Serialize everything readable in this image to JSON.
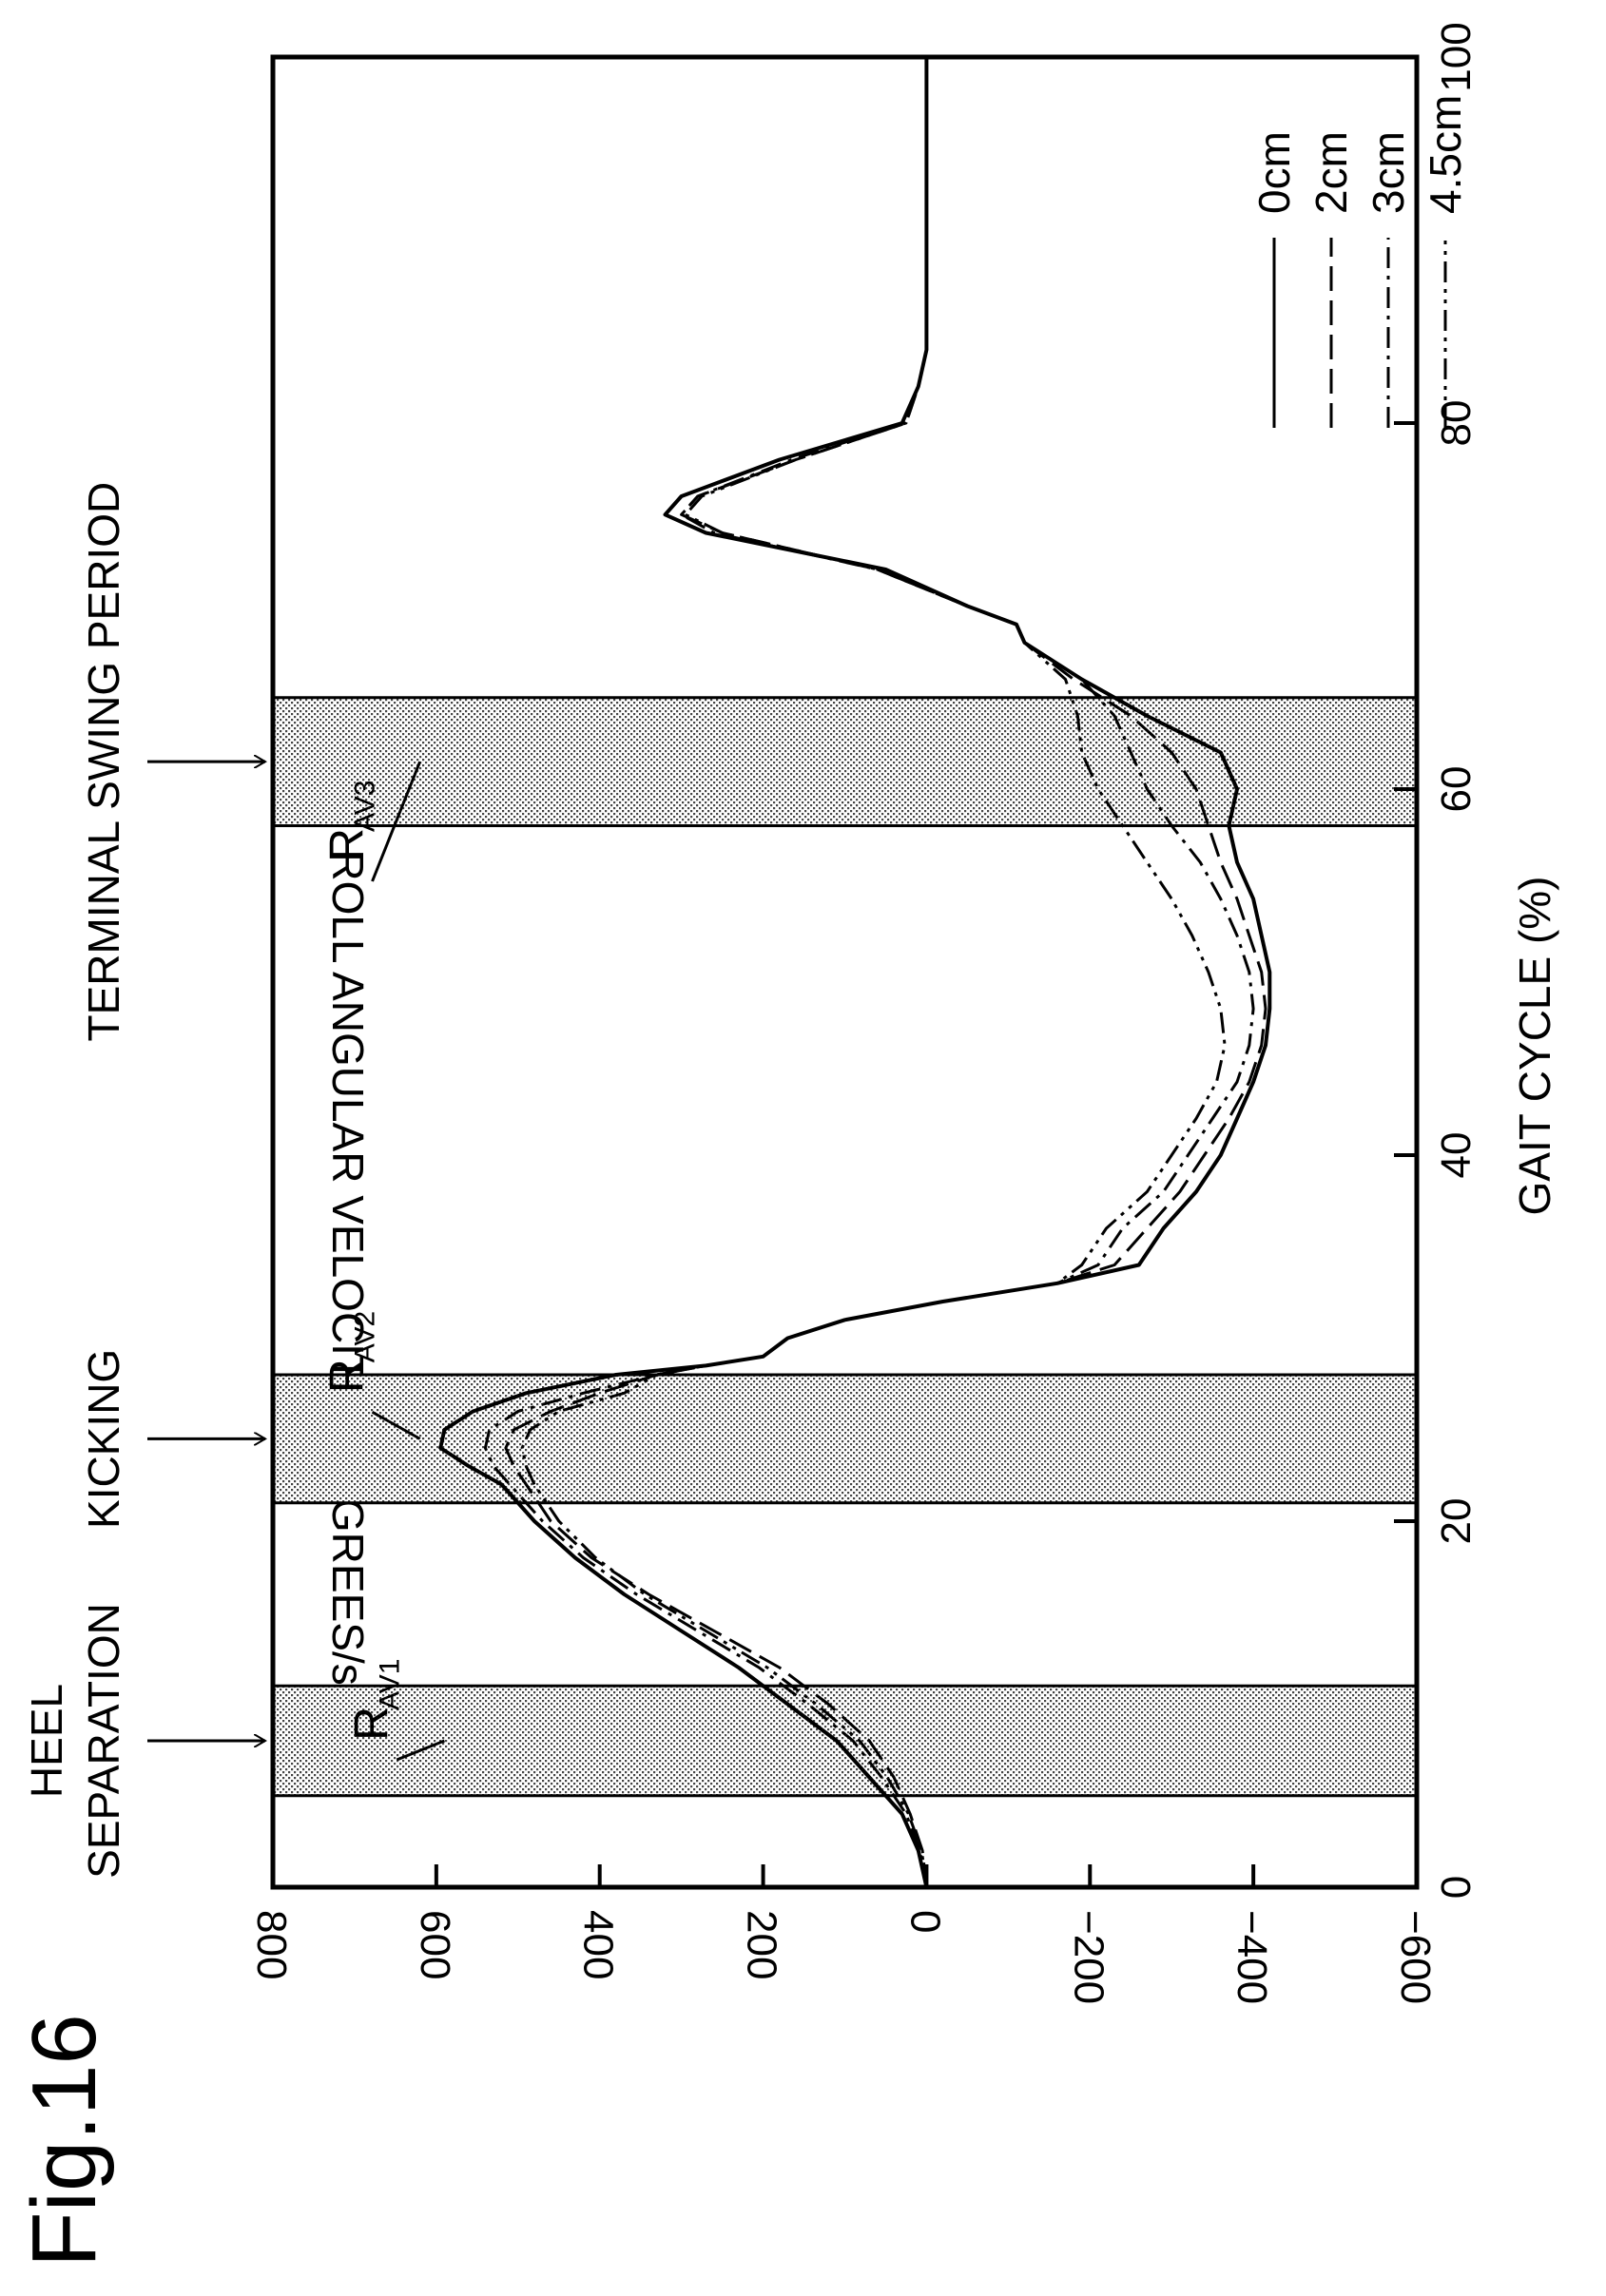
{
  "figure_label": "Fig.16",
  "chart_data": {
    "type": "line",
    "title": "",
    "xlabel": "GAIT CYCLE (%)",
    "ylabel": "ROLL ANGULAR VELOCITY (DEGREES/sec)",
    "xlim": [
      0,
      100
    ],
    "ylim": [
      -600,
      800
    ],
    "x_ticks": [
      0,
      20,
      40,
      60,
      80,
      100
    ],
    "y_ticks": [
      800,
      600,
      400,
      200,
      0,
      -200,
      -400,
      -600
    ],
    "x_tick_labels": [
      "0",
      "20",
      "40",
      "60",
      "80",
      "100"
    ],
    "y_tick_labels": [
      "800",
      "600",
      "400",
      "200",
      "0",
      "−200",
      "−400",
      "−600"
    ],
    "orientation": "rotated-90-clockwise",
    "grid": false,
    "legend_position": "top-right",
    "legend": [
      {
        "name": "0cm",
        "dash": "solid"
      },
      {
        "name": "2cm",
        "dash": "dash"
      },
      {
        "name": "3cm",
        "dash": "dash-dot"
      },
      {
        "name": "4.5cm",
        "dash": "dash-dot-dot"
      }
    ],
    "regions": [
      {
        "label_main": "R",
        "label_sub": "AV1",
        "x_start": 5,
        "x_end": 11,
        "label_x": 8,
        "label_y": 660
      },
      {
        "label_main": "R",
        "label_sub": "AV2",
        "x_start": 21,
        "x_end": 28,
        "label_x": 27,
        "label_y": 690
      },
      {
        "label_main": "R",
        "label_sub": "AV3",
        "x_start": 58,
        "x_end": 65,
        "label_x": 56,
        "label_y": 690
      }
    ],
    "arrows": [
      {
        "label_lines": [
          "HEEL",
          "SEPARATION"
        ],
        "x": 8
      },
      {
        "label_lines": [
          "KICKING"
        ],
        "x": 24.5
      },
      {
        "label_lines": [
          "TERMINAL SWING PERIOD"
        ],
        "x": 61.5
      }
    ],
    "x": [
      0,
      2,
      4,
      6,
      8,
      10,
      12,
      14,
      16,
      18,
      20,
      22,
      23,
      24,
      25,
      26,
      27,
      28,
      28.5,
      29,
      30,
      31,
      32,
      33,
      34,
      36,
      38,
      40,
      42,
      44,
      46,
      48,
      50,
      52,
      54,
      56,
      58,
      60,
      62,
      64,
      66,
      68,
      69,
      70,
      72,
      74,
      75,
      76,
      78,
      80,
      82,
      84,
      86,
      90,
      95,
      100
    ],
    "series": [
      {
        "name": "0cm",
        "dash": "solid",
        "values": [
          0,
          10,
          30,
          70,
          110,
          170,
          230,
          300,
          370,
          430,
          480,
          520,
          560,
          595,
          590,
          555,
          490,
          380,
          270,
          200,
          170,
          100,
          -20,
          -160,
          -260,
          -290,
          -330,
          -360,
          -380,
          -400,
          -415,
          -420,
          -420,
          -410,
          -400,
          -380,
          -370,
          -380,
          -360,
          -270,
          -190,
          -120,
          -110,
          -50,
          50,
          270,
          320,
          300,
          180,
          30,
          10,
          0,
          0,
          0,
          0,
          0
        ]
      },
      {
        "name": "2cm",
        "dash": "dash",
        "values": [
          0,
          5,
          20,
          40,
          70,
          120,
          180,
          260,
          340,
          410,
          460,
          490,
          505,
          515,
          505,
          460,
          400,
          330,
          270,
          200,
          170,
          100,
          -20,
          -160,
          -230,
          -270,
          -310,
          -340,
          -370,
          -395,
          -410,
          -415,
          -410,
          -395,
          -380,
          -360,
          -345,
          -330,
          -300,
          -250,
          -180,
          -120,
          -110,
          -50,
          60,
          250,
          300,
          280,
          160,
          25,
          10,
          0,
          0,
          0,
          0,
          0
        ]
      },
      {
        "name": "3cm",
        "dash": "dash-dot",
        "values": [
          0,
          8,
          25,
          55,
          90,
          145,
          205,
          280,
          355,
          420,
          470,
          510,
          530,
          540,
          535,
          500,
          420,
          330,
          270,
          200,
          170,
          100,
          -20,
          -160,
          -210,
          -240,
          -290,
          -320,
          -350,
          -380,
          -395,
          -400,
          -395,
          -380,
          -360,
          -335,
          -300,
          -270,
          -250,
          -230,
          -190,
          -120,
          -110,
          -50,
          60,
          260,
          300,
          280,
          165,
          28,
          10,
          0,
          0,
          0,
          0,
          0
        ]
      },
      {
        "name": "4.5cm",
        "dash": "dash-dot-dot",
        "values": [
          0,
          6,
          22,
          48,
          82,
          135,
          195,
          270,
          345,
          405,
          450,
          480,
          490,
          495,
          485,
          450,
          370,
          330,
          270,
          200,
          170,
          100,
          -20,
          -160,
          -190,
          -220,
          -270,
          -300,
          -330,
          -355,
          -365,
          -360,
          -345,
          -325,
          -300,
          -270,
          -240,
          -210,
          -190,
          -185,
          -170,
          -120,
          -110,
          -50,
          60,
          250,
          295,
          275,
          160,
          25,
          10,
          0,
          0,
          0,
          0,
          0
        ]
      }
    ]
  }
}
